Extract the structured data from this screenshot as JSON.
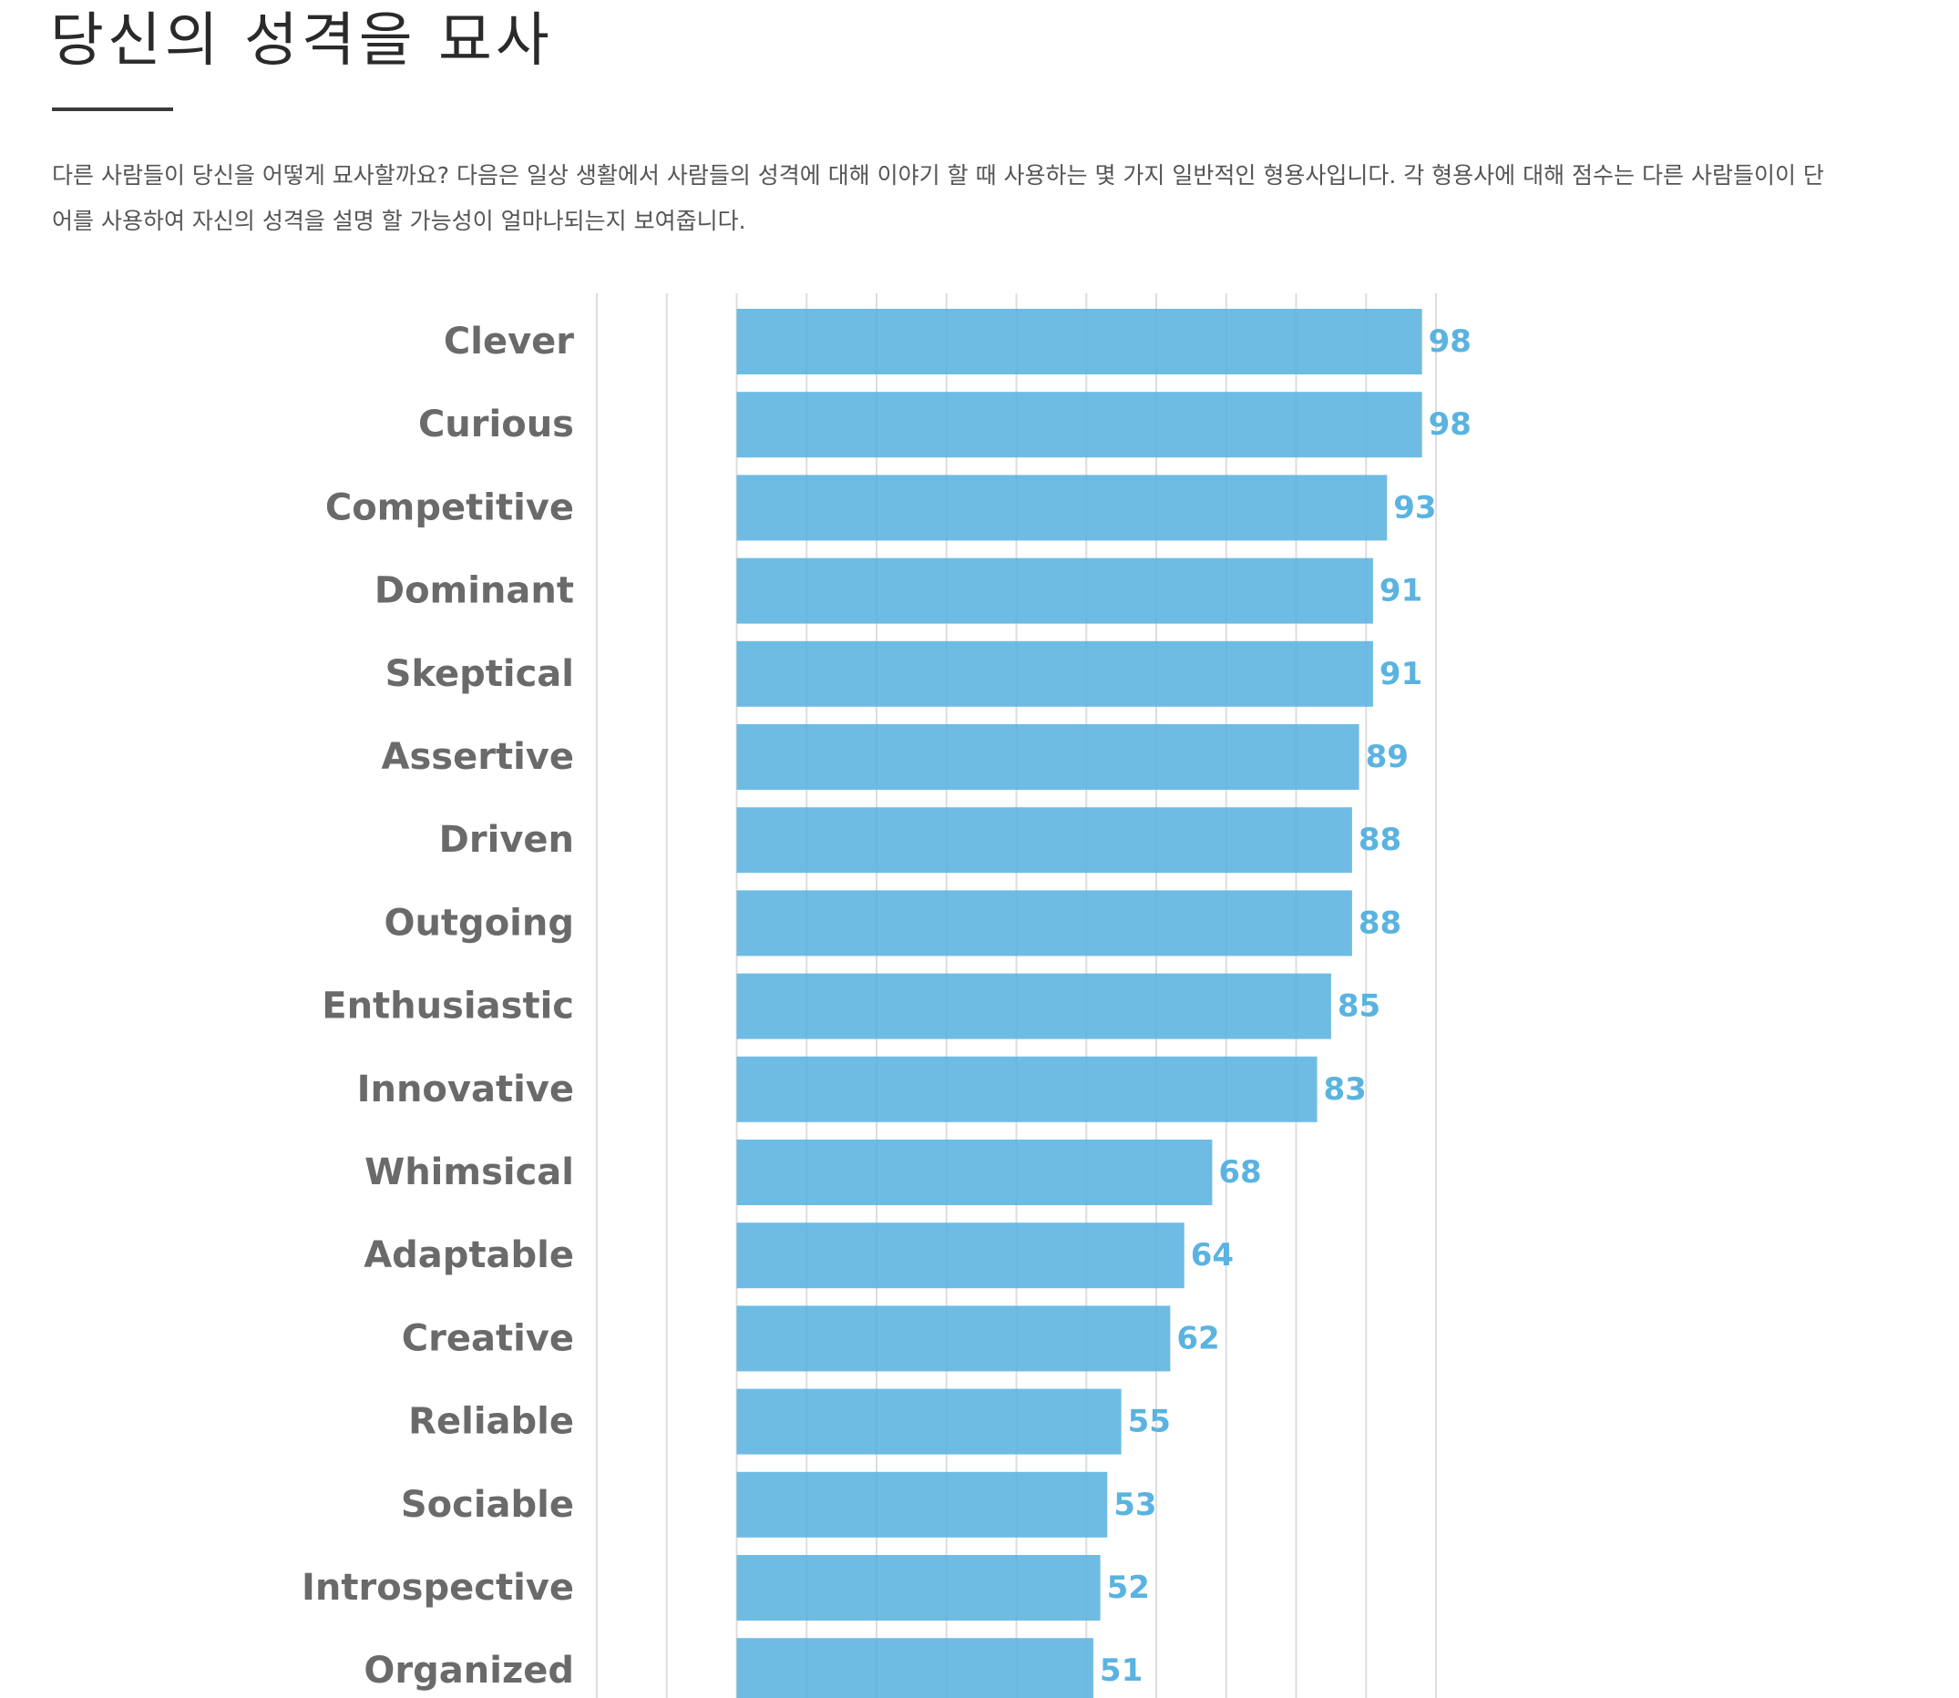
{
  "page": {
    "title": "당신의 성격을 묘사",
    "description": "다른 사람들이 당신을 어떻게 묘사할까요? 다음은 일상 생활에서 사람들의 성격에 대해 이야기 할 때 사용하는 몇 가지 일반적인 형용사입니다. 각 형용사에 대해 점수는 다른 사람들이이 단어를 사용하여 자신의 성격을 설명 할 가능성이 얼마나되는지 보여줍니다."
  },
  "colors": {
    "bar": "#5ab3e0",
    "value_label": "#5ab3e0",
    "category_label": "#6a6a6a",
    "gridline": "#dddddd"
  },
  "chart_data": {
    "type": "bar",
    "orientation": "horizontal",
    "categories": [
      "Clever",
      "Curious",
      "Competitive",
      "Dominant",
      "Skeptical",
      "Assertive",
      "Driven",
      "Outgoing",
      "Enthusiastic",
      "Innovative",
      "Whimsical",
      "Adaptable",
      "Creative",
      "Reliable",
      "Sociable",
      "Introspective",
      "Organized"
    ],
    "values": [
      98,
      98,
      93,
      91,
      91,
      89,
      88,
      88,
      85,
      83,
      68,
      64,
      62,
      55,
      53,
      52,
      51
    ],
    "xlim": [
      -20,
      100
    ],
    "grid": true,
    "data_labels": true
  }
}
